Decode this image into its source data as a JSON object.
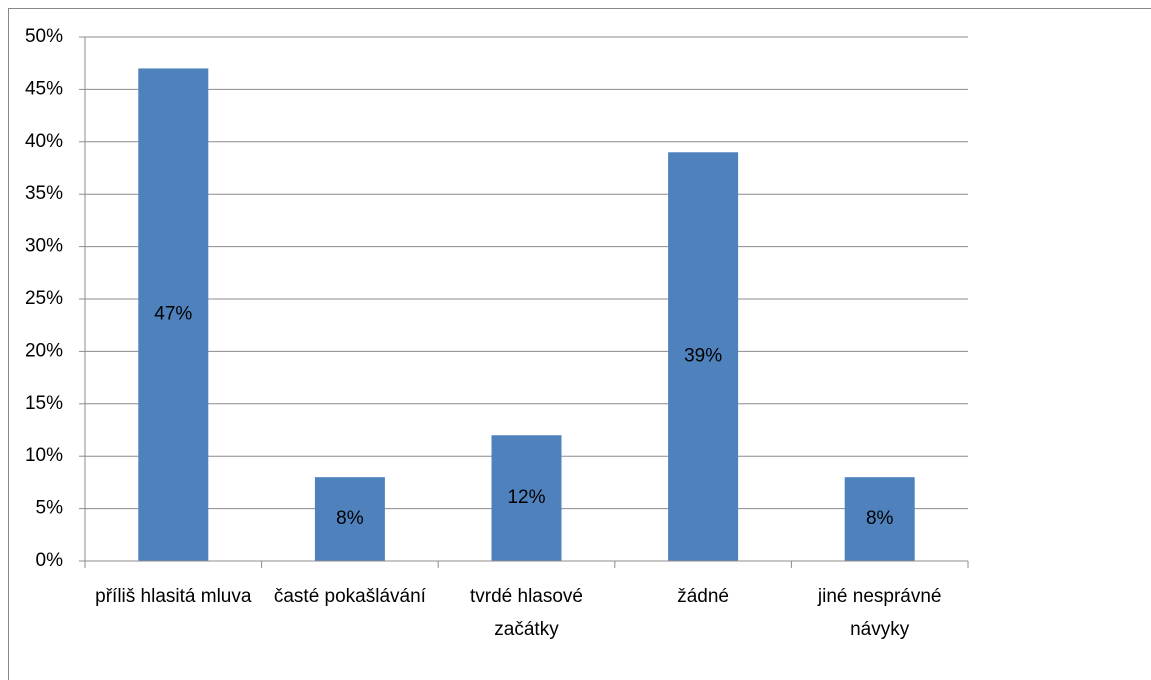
{
  "chart_data": {
    "type": "bar",
    "categories": [
      "příliš hlasitá mluva",
      "časté pokašlávání",
      "tvrdé hlasové začátky",
      "žádné",
      "jiné nesprávné návyky"
    ],
    "values": [
      47,
      8,
      12,
      39,
      8
    ],
    "value_labels": [
      "47%",
      "8%",
      "12%",
      "39%",
      "8%"
    ],
    "color": "#4f81bd",
    "ylim": [
      0,
      50
    ],
    "yticks": [
      {
        "value": 0,
        "label": "0%"
      },
      {
        "value": 5,
        "label": "5%"
      },
      {
        "value": 10,
        "label": "10%"
      },
      {
        "value": 15,
        "label": "15%"
      },
      {
        "value": 20,
        "label": "20%"
      },
      {
        "value": 25,
        "label": "25%"
      },
      {
        "value": 30,
        "label": "30%"
      },
      {
        "value": 35,
        "label": "35%"
      },
      {
        "value": 40,
        "label": "40%"
      },
      {
        "value": 45,
        "label": "45%"
      },
      {
        "value": 50,
        "label": "50%"
      }
    ],
    "grid": true
  }
}
